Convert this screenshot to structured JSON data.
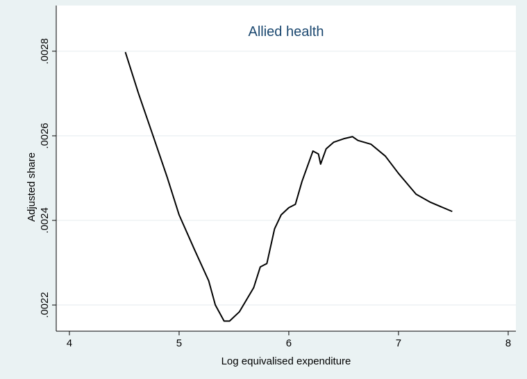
{
  "chart_data": {
    "type": "line",
    "title": "Allied health",
    "xlabel": "Log equivalised expenditure",
    "ylabel": "Adjusted share",
    "x": [
      4.51,
      4.63,
      4.76,
      4.89,
      5.0,
      5.14,
      5.27,
      5.33,
      5.41,
      5.46,
      5.55,
      5.68,
      5.74,
      5.8,
      5.87,
      5.93,
      6.0,
      6.06,
      6.12,
      6.22,
      6.27,
      6.29,
      6.34,
      6.41,
      6.5,
      6.58,
      6.63,
      6.75,
      6.88,
      7.0,
      7.16,
      7.29,
      7.49
    ],
    "series": [
      {
        "color": "#000000",
        "values": [
          0.002798,
          0.0027,
          0.002602,
          0.002503,
          0.002413,
          0.002331,
          0.002257,
          0.0022,
          0.002162,
          0.002162,
          0.002184,
          0.002241,
          0.00229,
          0.002298,
          0.00238,
          0.002413,
          0.00243,
          0.002438,
          0.002492,
          0.002564,
          0.002557,
          0.002533,
          0.002569,
          0.002585,
          0.002593,
          0.002598,
          0.002589,
          0.00258,
          0.002552,
          0.002511,
          0.002462,
          0.002443,
          0.002421
        ]
      }
    ],
    "xlim": [
      3.88,
      8.07
    ],
    "xticks": [
      4,
      5,
      6,
      7,
      8
    ],
    "ylim": [
      0.002138,
      0.002908
    ],
    "yticks": [
      {
        "value": 0.0022,
        "label": ".0022"
      },
      {
        "value": 0.0024,
        "label": ".0024"
      },
      {
        "value": 0.0026,
        "label": ".0026"
      },
      {
        "value": 0.0028,
        "label": ".0028"
      }
    ],
    "grid": true
  }
}
